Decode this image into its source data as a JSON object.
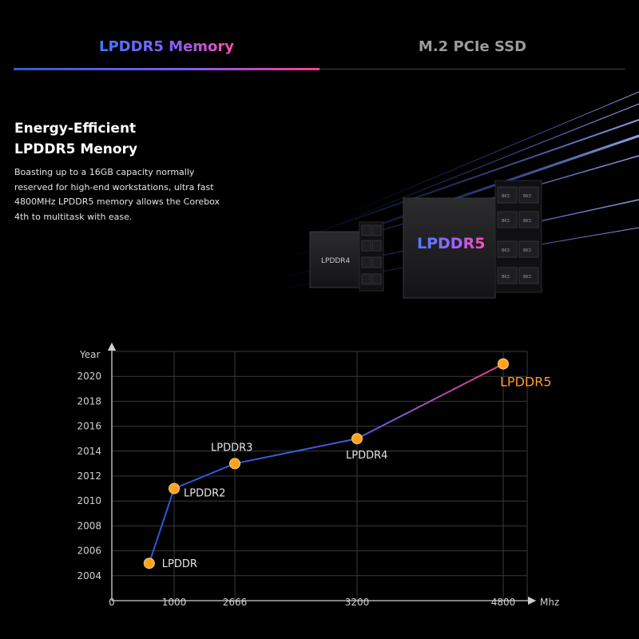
{
  "tabs": [
    {
      "label": "LPDDR5 Memory",
      "active": true
    },
    {
      "label": "M.2 PCIe SSD",
      "active": false
    }
  ],
  "feature": {
    "title_line1": "Energy-Efficient",
    "title_line2": "LPDDR5 Menory",
    "description": "Boasting up to a 16GB capacity normally reserved for high-end workstations, ultra fast 4800MHz LPDDR5 memory allows the Corebox 4th to multitask with ease."
  },
  "hero": {
    "chip_large_label": "LPDDR5",
    "chip_small_label": "LPDDR4",
    "bank_label": "BK3"
  },
  "colors": {
    "accent_blue": "#3f7bff",
    "accent_pink": "#ff4fa8",
    "point_orange": "#ffa21f",
    "line_blue": "#2f5fd8",
    "label_orange": "#ff9a2e"
  },
  "chart_data": {
    "type": "line",
    "ylabel": "Year",
    "xlabel": "Mhz",
    "x_ticks": [
      "0",
      "1000",
      "2666",
      "3200",
      "4800"
    ],
    "y_ticks": [
      "2004",
      "2006",
      "2008",
      "2010",
      "2012",
      "2014",
      "2016",
      "2018",
      "2020"
    ],
    "y_range": [
      2002,
      2022
    ],
    "grid": true,
    "points": [
      {
        "label": "LPDDR",
        "x": 600,
        "y": 2005
      },
      {
        "label": "LPDDR2",
        "x": 1000,
        "y": 2011
      },
      {
        "label": "LPDDR3",
        "x": 2666,
        "y": 2013
      },
      {
        "label": "LPDDR4",
        "x": 3200,
        "y": 2015
      },
      {
        "label": "LPDDR5",
        "x": 4800,
        "y": 2021
      }
    ]
  }
}
